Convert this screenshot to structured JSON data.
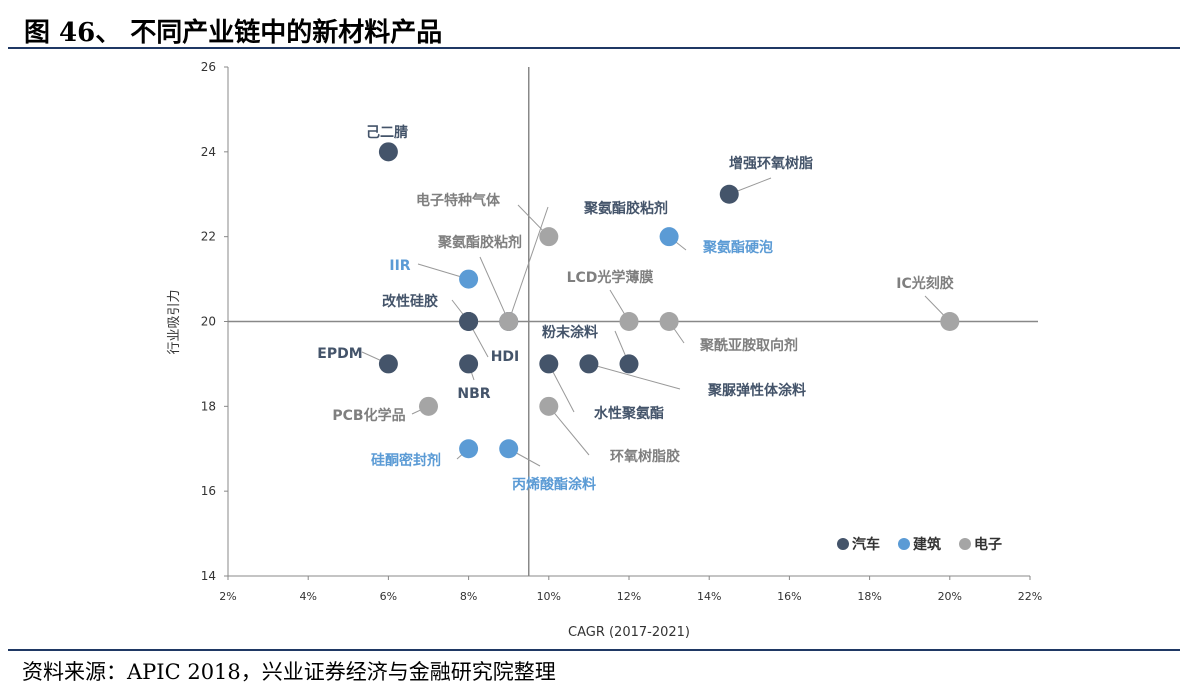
{
  "title": "图 46、  不同产业链中的新材料产品",
  "source": "资料来源：APIC 2018，兴业证券经济与金融研究院整理",
  "chart_data": {
    "type": "scatter",
    "xlabel": "CAGR (2017-2021)",
    "ylabel": "行业吸引力",
    "xlim": [
      2,
      22
    ],
    "ylim": [
      14,
      26
    ],
    "xticks": [
      "2%",
      "4%",
      "6%",
      "8%",
      "10%",
      "12%",
      "14%",
      "16%",
      "18%",
      "20%",
      "22%"
    ],
    "yticks": [
      "14",
      "16",
      "18",
      "20",
      "22",
      "24",
      "26"
    ],
    "quadrant_lines": {
      "x": 9.5,
      "y": 20
    },
    "legend": {
      "position": "bottom-right",
      "entries": [
        {
          "name": "汽车",
          "color": "#44546a"
        },
        {
          "name": "建筑",
          "color": "#5b9bd5"
        },
        {
          "name": "电子",
          "color": "#a5a5a5"
        }
      ]
    },
    "points": [
      {
        "label": "己二腈",
        "x": 6,
        "y": 24,
        "series": "汽车"
      },
      {
        "label": "电子特种气体",
        "x": 10,
        "y": 22,
        "series": "电子"
      },
      {
        "label": "聚氨酯胶粘剂",
        "x": 9,
        "y": 20,
        "series": "汽车"
      },
      {
        "label": "聚氨酯胶粘剂",
        "x": 9,
        "y": 20,
        "series": "电子"
      },
      {
        "label": "增强环氧树脂",
        "x": 14.5,
        "y": 23,
        "series": "汽车"
      },
      {
        "label": "聚氨酯硬泡",
        "x": 13,
        "y": 22,
        "series": "建筑"
      },
      {
        "label": "IIR",
        "x": 8,
        "y": 21,
        "series": "建筑"
      },
      {
        "label": "LCD光学薄膜",
        "x": 12,
        "y": 20,
        "series": "电子"
      },
      {
        "label": "聚酰亚胺取向剂",
        "x": 13,
        "y": 20,
        "series": "电子"
      },
      {
        "label": "IC光刻胶",
        "x": 20,
        "y": 20,
        "series": "电子"
      },
      {
        "label": "改性硅胶",
        "x": 8,
        "y": 20,
        "series": "汽车"
      },
      {
        "label": "HDI",
        "x": 8,
        "y": 20,
        "series": "汽车"
      },
      {
        "label": "EPDM",
        "x": 6,
        "y": 19,
        "series": "汽车"
      },
      {
        "label": "NBR",
        "x": 8,
        "y": 19,
        "series": "汽车"
      },
      {
        "label": "粉末涂料",
        "x": 12,
        "y": 19,
        "series": "汽车"
      },
      {
        "label": "聚脲弹性体涂料",
        "x": 11,
        "y": 19,
        "series": "汽车"
      },
      {
        "label": "水性聚氨酯",
        "x": 10,
        "y": 19,
        "series": "汽车"
      },
      {
        "label": "PCB化学品",
        "x": 7,
        "y": 18,
        "series": "电子"
      },
      {
        "label": "环氧树脂胶",
        "x": 10,
        "y": 18,
        "series": "电子"
      },
      {
        "label": "硅酮密封剂",
        "x": 8,
        "y": 17,
        "series": "建筑"
      },
      {
        "label": "丙烯酸酯涂料",
        "x": 9,
        "y": 17,
        "series": "建筑"
      }
    ]
  }
}
